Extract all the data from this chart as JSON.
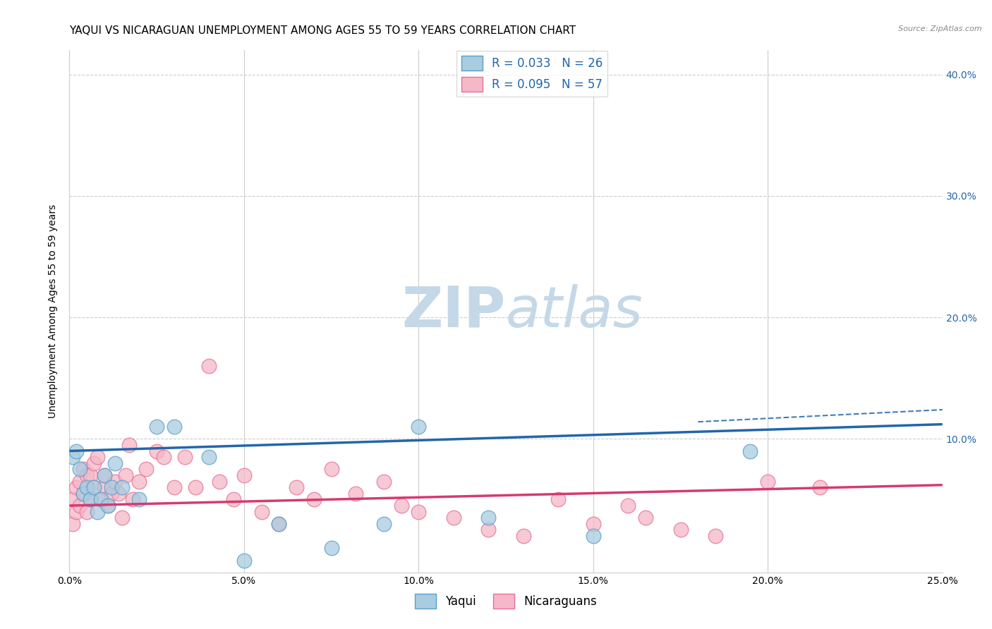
{
  "title": "YAQUI VS NICARAGUAN UNEMPLOYMENT AMONG AGES 55 TO 59 YEARS CORRELATION CHART",
  "source": "Source: ZipAtlas.com",
  "ylabel": "Unemployment Among Ages 55 to 59 years",
  "xlim": [
    0.0,
    0.25
  ],
  "ylim": [
    -0.01,
    0.42
  ],
  "xticks": [
    0.0,
    0.05,
    0.1,
    0.15,
    0.2,
    0.25
  ],
  "yticks": [
    0.0,
    0.1,
    0.2,
    0.3,
    0.4
  ],
  "xtick_labels": [
    "0.0%",
    "5.0%",
    "10.0%",
    "15.0%",
    "20.0%",
    "25.0%"
  ],
  "ytick_labels_right": [
    "",
    "10.0%",
    "20.0%",
    "30.0%",
    "40.0%"
  ],
  "yaqui_color": "#a8cce0",
  "nicaraguan_color": "#f4b8c8",
  "yaqui_edge_color": "#5b9ec9",
  "nicaraguan_edge_color": "#e87096",
  "yaqui_R": 0.033,
  "yaqui_N": 26,
  "nicaraguan_R": 0.095,
  "nicaraguan_N": 57,
  "trend_blue_color": "#2166ac",
  "trend_pink_color": "#d63a70",
  "watermark_zip_color": "#c5d8e8",
  "watermark_atlas_color": "#c5d8e8",
  "grid_color": "#cccccc",
  "bg_color": "#ffffff",
  "title_fontsize": 11,
  "axis_label_fontsize": 10,
  "tick_fontsize": 10,
  "legend_fontsize": 12,
  "yaqui_x": [
    0.001,
    0.002,
    0.003,
    0.004,
    0.005,
    0.006,
    0.007,
    0.008,
    0.009,
    0.01,
    0.011,
    0.012,
    0.013,
    0.015,
    0.02,
    0.025,
    0.03,
    0.04,
    0.05,
    0.06,
    0.075,
    0.09,
    0.1,
    0.12,
    0.15,
    0.195
  ],
  "yaqui_y": [
    0.085,
    0.09,
    0.075,
    0.055,
    0.06,
    0.05,
    0.06,
    0.04,
    0.05,
    0.07,
    0.045,
    0.06,
    0.08,
    0.06,
    0.05,
    0.11,
    0.11,
    0.085,
    0.0,
    0.03,
    0.01,
    0.03,
    0.11,
    0.035,
    0.02,
    0.09
  ],
  "nicaraguan_x": [
    0.001,
    0.001,
    0.002,
    0.002,
    0.003,
    0.003,
    0.004,
    0.004,
    0.005,
    0.005,
    0.006,
    0.006,
    0.007,
    0.007,
    0.008,
    0.009,
    0.01,
    0.01,
    0.011,
    0.012,
    0.013,
    0.014,
    0.015,
    0.016,
    0.017,
    0.018,
    0.02,
    0.022,
    0.025,
    0.027,
    0.03,
    0.033,
    0.036,
    0.04,
    0.043,
    0.047,
    0.05,
    0.055,
    0.06,
    0.065,
    0.07,
    0.075,
    0.082,
    0.09,
    0.095,
    0.1,
    0.11,
    0.12,
    0.13,
    0.14,
    0.15,
    0.16,
    0.165,
    0.175,
    0.185,
    0.2,
    0.215
  ],
  "nicaraguan_y": [
    0.03,
    0.05,
    0.04,
    0.06,
    0.045,
    0.065,
    0.055,
    0.075,
    0.04,
    0.07,
    0.05,
    0.07,
    0.06,
    0.08,
    0.085,
    0.05,
    0.06,
    0.07,
    0.045,
    0.055,
    0.065,
    0.055,
    0.035,
    0.07,
    0.095,
    0.05,
    0.065,
    0.075,
    0.09,
    0.085,
    0.06,
    0.085,
    0.06,
    0.16,
    0.065,
    0.05,
    0.07,
    0.04,
    0.03,
    0.06,
    0.05,
    0.075,
    0.055,
    0.065,
    0.045,
    0.04,
    0.035,
    0.025,
    0.02,
    0.05,
    0.03,
    0.045,
    0.035,
    0.025,
    0.02,
    0.065,
    0.06
  ],
  "yaqui_trend": [
    0.09,
    0.112
  ],
  "nicaraguan_trend": [
    0.045,
    0.062
  ],
  "dashed_line_x": [
    0.18,
    0.25
  ],
  "dashed_line_y": [
    0.114,
    0.124
  ]
}
